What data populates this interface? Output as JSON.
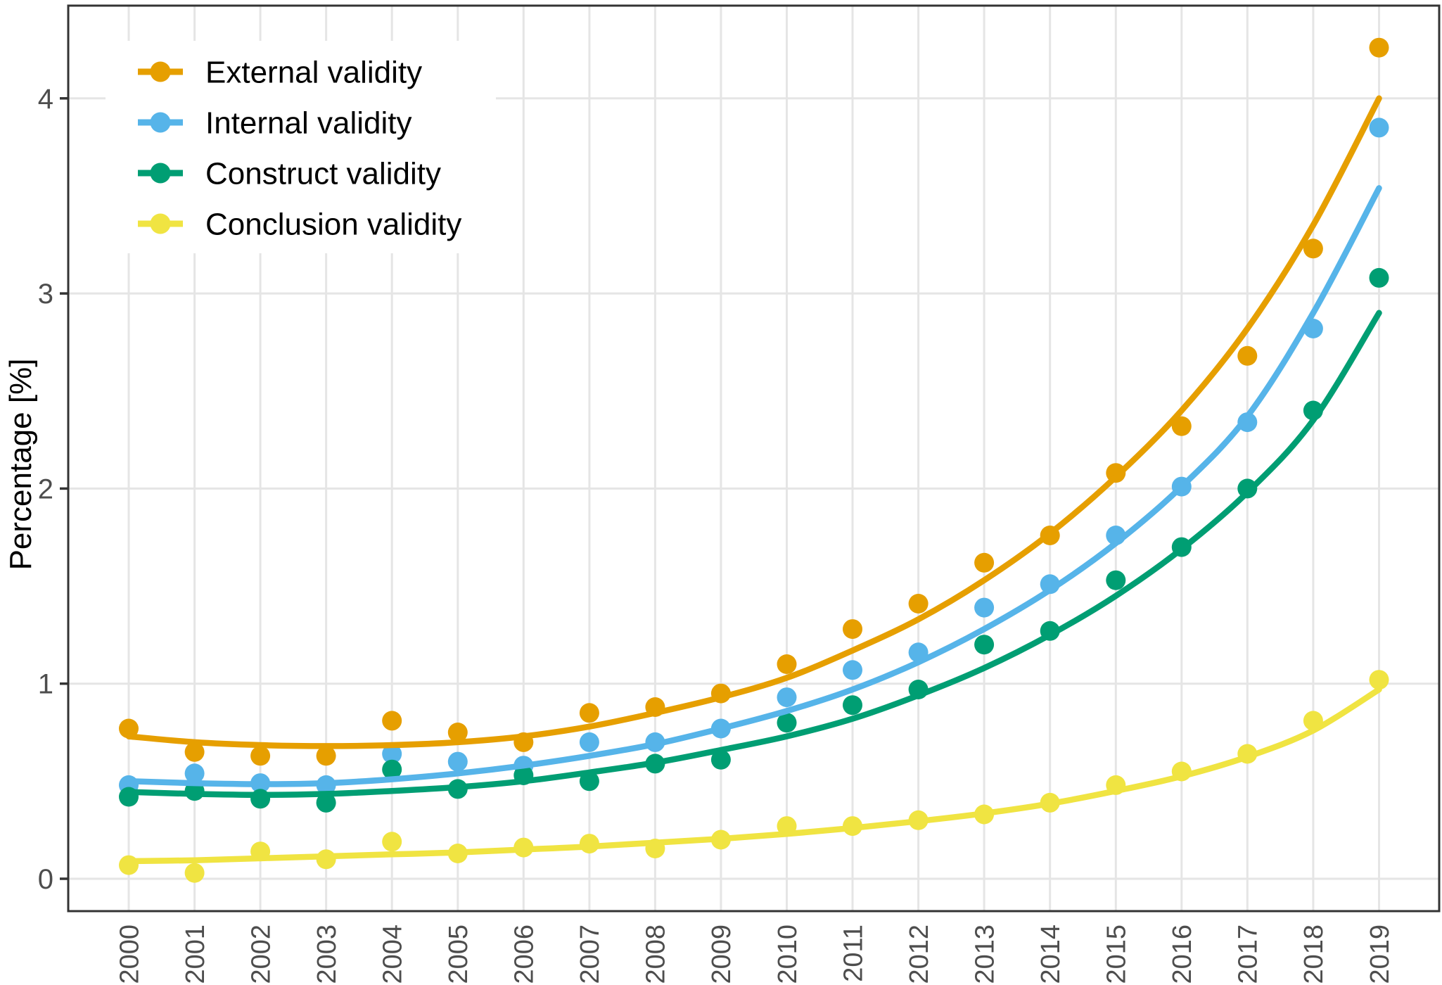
{
  "chart_data": {
    "type": "scatter",
    "title": "",
    "xlabel": "",
    "ylabel": "Percentage [%]",
    "x": [
      2000,
      2001,
      2002,
      2003,
      2004,
      2005,
      2006,
      2007,
      2008,
      2009,
      2010,
      2011,
      2012,
      2013,
      2014,
      2015,
      2016,
      2017,
      2018,
      2019
    ],
    "yticks": [
      0,
      1,
      2,
      3,
      4
    ],
    "ylim": [
      -0.27,
      4.47
    ],
    "grid": "major-only",
    "legend_position": "top-left-inside",
    "colors": {
      "panel_border": "#333333",
      "gridline": "#e5e5e5",
      "tick": "#333333",
      "tick_label": "#4d4d4d",
      "background": "#ffffff"
    },
    "series": [
      {
        "name": "External validity",
        "color": "#E69F00",
        "points": [
          0.77,
          0.65,
          0.63,
          0.63,
          0.81,
          0.75,
          0.7,
          0.85,
          0.88,
          0.95,
          1.1,
          1.28,
          1.41,
          1.62,
          1.76,
          2.08,
          2.32,
          2.68,
          3.23,
          4.26
        ],
        "trend": [
          0.73,
          0.7,
          0.685,
          0.68,
          0.685,
          0.7,
          0.73,
          0.78,
          0.85,
          0.93,
          1.03,
          1.17,
          1.33,
          1.53,
          1.77,
          2.06,
          2.4,
          2.82,
          3.35,
          4.0
        ]
      },
      {
        "name": "Internal validity",
        "color": "#56B4E9",
        "points": [
          0.48,
          0.54,
          0.49,
          0.48,
          0.64,
          0.6,
          0.58,
          0.7,
          0.7,
          0.77,
          0.93,
          1.07,
          1.16,
          1.39,
          1.51,
          1.76,
          2.01,
          2.34,
          2.82,
          3.85
        ],
        "trend": [
          0.5,
          0.49,
          0.485,
          0.49,
          0.51,
          0.54,
          0.58,
          0.63,
          0.69,
          0.77,
          0.86,
          0.97,
          1.11,
          1.28,
          1.48,
          1.72,
          2.01,
          2.37,
          2.9,
          3.54
        ]
      },
      {
        "name": "Construct validity",
        "color": "#009E73",
        "points": [
          0.42,
          0.45,
          0.41,
          0.39,
          0.56,
          0.46,
          0.53,
          0.5,
          0.59,
          0.61,
          0.8,
          0.89,
          0.97,
          1.2,
          1.27,
          1.53,
          1.7,
          2.0,
          2.4,
          3.08
        ],
        "trend": [
          0.445,
          0.435,
          0.43,
          0.435,
          0.45,
          0.47,
          0.5,
          0.545,
          0.595,
          0.66,
          0.73,
          0.82,
          0.94,
          1.08,
          1.25,
          1.45,
          1.69,
          1.98,
          2.35,
          2.9
        ]
      },
      {
        "name": "Conclusion validity",
        "color": "#F0E442",
        "points": [
          0.07,
          0.03,
          0.14,
          0.1,
          0.19,
          0.13,
          0.16,
          0.18,
          0.155,
          0.2,
          0.27,
          0.27,
          0.3,
          0.33,
          0.39,
          0.48,
          0.55,
          0.64,
          0.81,
          1.02
        ],
        "trend": [
          0.09,
          0.095,
          0.105,
          0.115,
          0.125,
          0.135,
          0.15,
          0.165,
          0.185,
          0.205,
          0.23,
          0.26,
          0.295,
          0.335,
          0.385,
          0.45,
          0.525,
          0.625,
          0.76,
          0.97
        ]
      }
    ]
  }
}
